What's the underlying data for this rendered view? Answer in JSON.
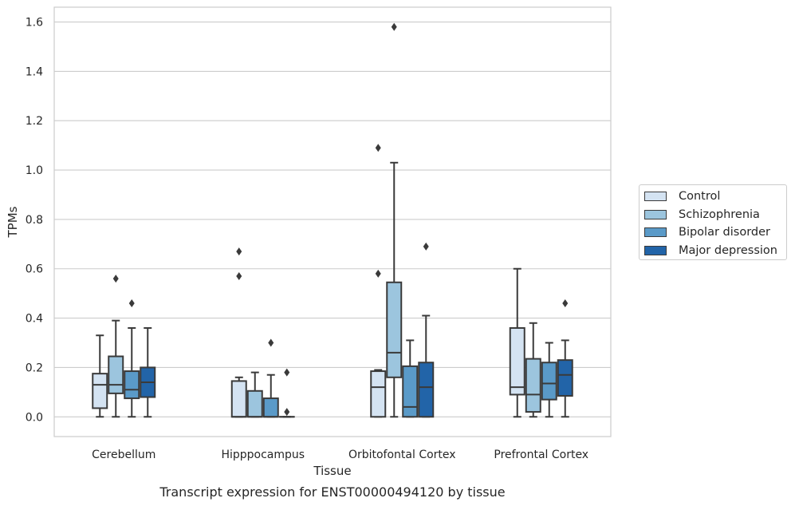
{
  "chart_data": {
    "type": "box",
    "title": "",
    "caption": "Transcript expression for ENST00000494120 by tissue",
    "xlabel": "Tissue",
    "ylabel": "TPMs",
    "ylim": [
      -0.08,
      1.66
    ],
    "yticks": [
      "0.0",
      "0.2",
      "0.4",
      "0.6",
      "0.8",
      "1.0",
      "1.2",
      "1.4",
      "1.6"
    ],
    "grid": true,
    "legend_position": "right",
    "categories": [
      "Cerebellum",
      "Hipppocampus",
      "Orbitofontal Cortex",
      "Prefrontal Cortex"
    ],
    "series": [
      {
        "name": "Control",
        "color": "#d4e3f2",
        "boxes": [
          {
            "min": 0.0,
            "q1": 0.035,
            "median": 0.13,
            "q3": 0.175,
            "max": 0.33,
            "outliers": []
          },
          {
            "min": 0.0,
            "q1": 0.0,
            "median": 0.0,
            "q3": 0.145,
            "max": 0.16,
            "outliers": [
              0.57,
              0.67
            ]
          },
          {
            "min": 0.0,
            "q1": 0.0,
            "median": 0.12,
            "q3": 0.185,
            "max": 0.19,
            "outliers": [
              0.58,
              1.09
            ]
          },
          {
            "min": 0.0,
            "q1": 0.09,
            "median": 0.12,
            "q3": 0.36,
            "max": 0.6,
            "outliers": []
          }
        ]
      },
      {
        "name": "Schizophrenia",
        "color": "#9cc5de",
        "boxes": [
          {
            "min": 0.0,
            "q1": 0.095,
            "median": 0.13,
            "q3": 0.245,
            "max": 0.39,
            "outliers": [
              0.56
            ]
          },
          {
            "min": 0.0,
            "q1": 0.0,
            "median": 0.0,
            "q3": 0.105,
            "max": 0.18,
            "outliers": []
          },
          {
            "min": 0.0,
            "q1": 0.16,
            "median": 0.26,
            "q3": 0.545,
            "max": 1.03,
            "outliers": [
              1.58
            ]
          },
          {
            "min": 0.0,
            "q1": 0.02,
            "median": 0.09,
            "q3": 0.235,
            "max": 0.38,
            "outliers": []
          }
        ]
      },
      {
        "name": "Bipolar disorder",
        "color": "#5a9ac8",
        "boxes": [
          {
            "min": 0.0,
            "q1": 0.075,
            "median": 0.11,
            "q3": 0.185,
            "max": 0.36,
            "outliers": [
              0.46
            ]
          },
          {
            "min": 0.0,
            "q1": 0.0,
            "median": 0.0,
            "q3": 0.075,
            "max": 0.17,
            "outliers": [
              0.3
            ]
          },
          {
            "min": 0.0,
            "q1": 0.0,
            "median": 0.04,
            "q3": 0.205,
            "max": 0.31,
            "outliers": []
          },
          {
            "min": 0.0,
            "q1": 0.07,
            "median": 0.135,
            "q3": 0.22,
            "max": 0.3,
            "outliers": []
          }
        ]
      },
      {
        "name": "Major depression",
        "color": "#2264a8",
        "boxes": [
          {
            "min": 0.0,
            "q1": 0.08,
            "median": 0.14,
            "q3": 0.2,
            "max": 0.36,
            "outliers": []
          },
          {
            "min": 0.0,
            "q1": 0.0,
            "median": 0.0,
            "q3": 0.0,
            "max": 0.0,
            "outliers": [
              0.02,
              0.18
            ]
          },
          {
            "min": 0.0,
            "q1": 0.0,
            "median": 0.12,
            "q3": 0.22,
            "max": 0.41,
            "outliers": [
              0.69
            ]
          },
          {
            "min": 0.0,
            "q1": 0.085,
            "median": 0.17,
            "q3": 0.23,
            "max": 0.31,
            "outliers": [
              0.46
            ]
          }
        ]
      }
    ]
  }
}
